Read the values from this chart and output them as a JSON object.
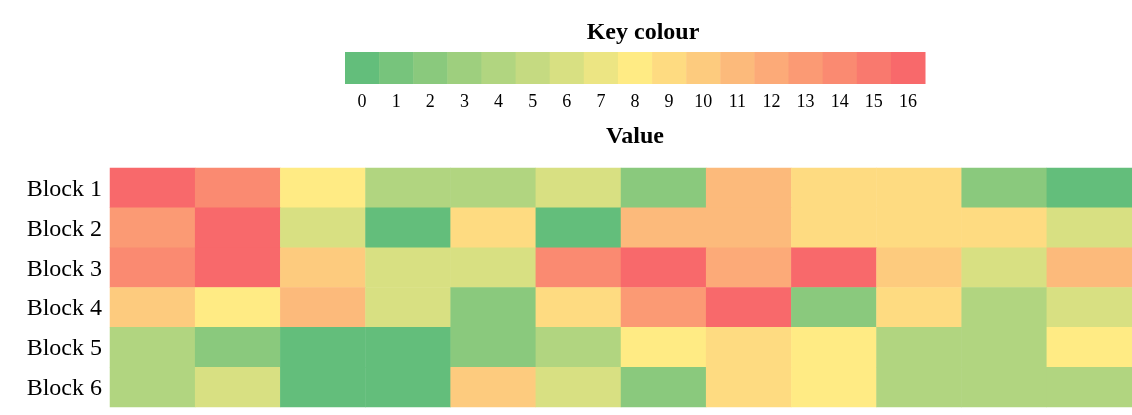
{
  "chart_data": {
    "type": "heatmap",
    "title": "Key colour",
    "clabel": "Value",
    "categories": [
      null,
      null,
      null,
      null,
      null,
      null,
      null,
      null,
      null,
      null,
      null,
      null
    ],
    "y_categories": [
      "Block 1",
      "Block 2",
      "Block 3",
      "Block 4",
      "Block 5",
      "Block 6"
    ],
    "cells": [
      [
        16,
        14,
        8,
        4,
        4,
        6,
        2,
        11,
        9,
        9,
        2,
        0
      ],
      [
        13,
        16,
        6,
        0,
        9,
        0,
        11,
        11,
        9,
        9,
        9,
        6
      ],
      [
        14,
        16,
        10,
        6,
        6,
        14,
        16,
        12,
        16,
        10,
        6,
        11
      ],
      [
        10,
        8,
        11,
        6,
        2,
        9,
        13,
        16,
        2,
        9,
        4,
        6
      ],
      [
        4,
        2,
        0,
        0,
        2,
        4,
        8,
        9,
        8,
        4,
        4,
        8
      ],
      [
        4,
        6,
        0,
        0,
        10,
        6,
        2,
        9,
        8,
        4,
        4,
        4
      ]
    ],
    "clim": [
      -0.5,
      16.5
    ],
    "cticks": [
      0,
      1,
      2,
      3,
      4,
      5,
      6,
      7,
      8,
      9,
      10,
      11,
      12,
      13,
      14,
      15,
      16
    ]
  }
}
